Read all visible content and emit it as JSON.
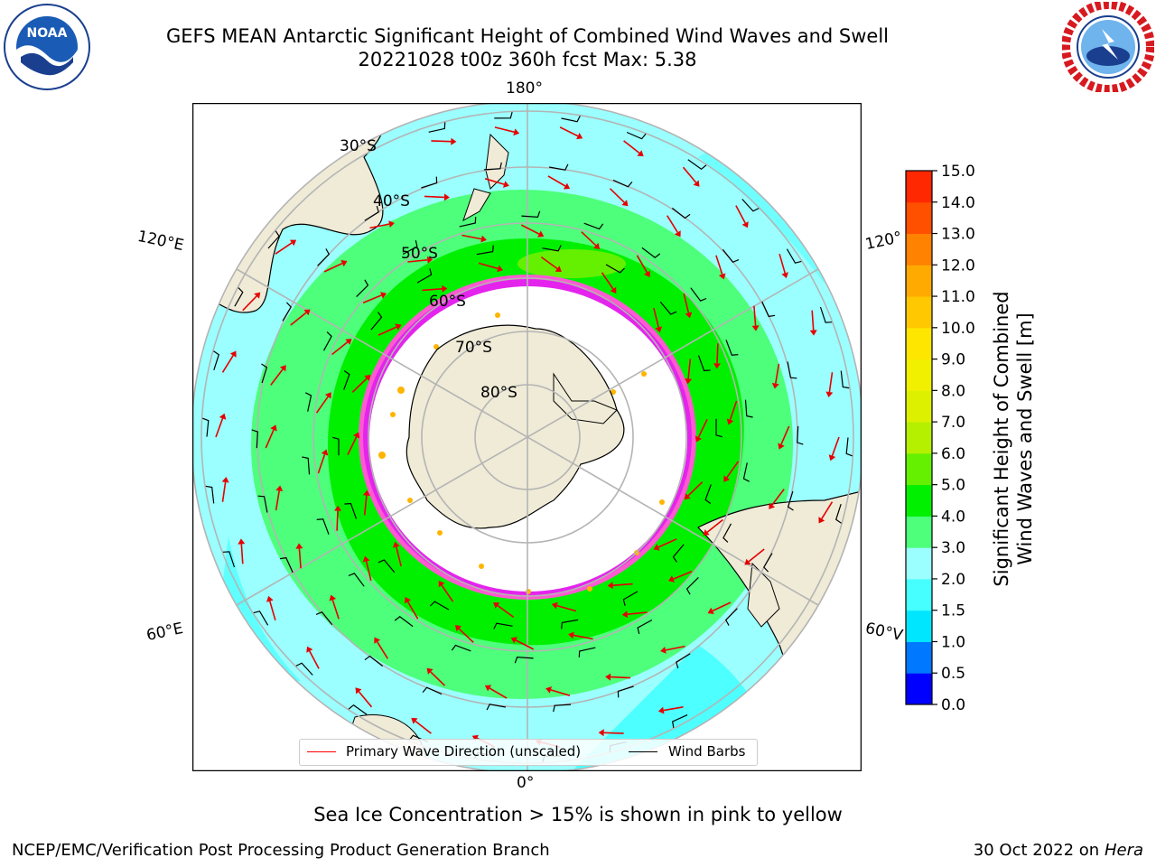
{
  "header": {
    "title_line1": "GEFS MEAN Antarctic Significant Height of Combined Wind Waves and Swell",
    "title_line2": "20221028 t00z 360h fcst   Max: 5.38"
  },
  "logos": {
    "left": {
      "text": "NOAA",
      "ring_text": "NATIONAL OCEANIC AND ATMOSPHERIC ADMINISTRATION · U.S. DEPARTMENT OF COMMERCE"
    },
    "right": {
      "ring_text": "NATIONAL WEATHER SERVICE"
    }
  },
  "map": {
    "longitude_labels": {
      "top": "180°",
      "bottom": "0°",
      "left_upper": "120°E",
      "left_lower": "60°E",
      "right_upper": "120°",
      "right_lower": "60°V"
    },
    "latitude_labels": [
      "30°S",
      "40°S",
      "50°S",
      "60°S",
      "70°S",
      "80°S"
    ],
    "colors": {
      "land": "#efebd7",
      "ocean_edge": "#ffffff",
      "grid": "#b4b4b4",
      "arrow": "#e60000",
      "ice_pink": "#ff5ad2",
      "ice_magenta": "#d200ff",
      "ice_orange": "#ffb400"
    }
  },
  "legend": {
    "primary_wave": "Primary Wave Direction (unscaled)",
    "wind_barbs": "Wind Barbs",
    "primary_color": "#ff0000",
    "barb_color": "#000000"
  },
  "colorbar": {
    "title_line1": "Significant Height of Combined",
    "title_line2": "Wind Waves and Swell [m]",
    "ticks": [
      "0.0",
      "0.5",
      "1.0",
      "1.5",
      "2.0",
      "3.0",
      "4.0",
      "5.0",
      "6.0",
      "7.0",
      "8.0",
      "9.0",
      "10.0",
      "11.0",
      "12.0",
      "13.0",
      "14.0",
      "15.0"
    ],
    "colors": [
      "#0000ff",
      "#0078ff",
      "#00e6ff",
      "#46ffff",
      "#9bffff",
      "#4dff7a",
      "#00f000",
      "#64f000",
      "#b4f000",
      "#dcf000",
      "#f0f000",
      "#ffe600",
      "#ffc800",
      "#ffaa00",
      "#ff8200",
      "#ff5000",
      "#ff2800",
      "#ff0000"
    ]
  },
  "footer": {
    "caption": "Sea Ice Concentration > 15% is shown in pink to yellow",
    "left": "NCEP/EMC/Verification Post Processing Product Generation Branch",
    "right_prefix": "30 Oct 2022 on ",
    "right_machine": "Hera"
  }
}
